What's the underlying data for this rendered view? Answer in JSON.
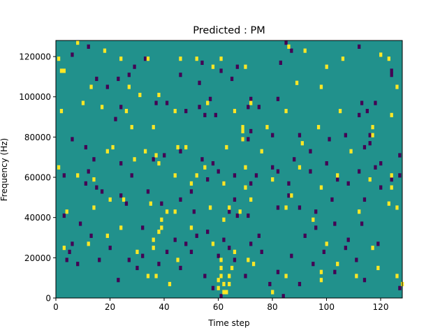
{
  "chart_data": {
    "type": "heatmap",
    "title": "Predicted : PM",
    "xlabel": "Time step",
    "ylabel": "Frequency (Hz)",
    "xlim": [
      0,
      128
    ],
    "ylim": [
      0,
      128000
    ],
    "x_ticks": [
      0,
      20,
      40,
      60,
      80,
      100,
      120
    ],
    "x_tick_labels": [
      "0",
      "20",
      "40",
      "60",
      "80",
      "100",
      "120"
    ],
    "y_ticks": [
      0,
      20000,
      40000,
      60000,
      80000,
      100000,
      120000
    ],
    "y_tick_labels": [
      "0",
      "20000",
      "40000",
      "60000",
      "80000",
      "100000",
      "120000"
    ],
    "grid": false,
    "legend": "none",
    "colors": {
      "background": "#21918c",
      "high": "#fde725",
      "low": "#440154"
    },
    "high_cells": [
      [
        1,
        118000
      ],
      [
        2,
        112000
      ],
      [
        3,
        112000
      ],
      [
        8,
        126000
      ],
      [
        18,
        122000
      ],
      [
        24,
        118000
      ],
      [
        34,
        118000
      ],
      [
        46,
        118000
      ],
      [
        52,
        118000
      ],
      [
        58,
        114000
      ],
      [
        61,
        118000
      ],
      [
        70,
        114000
      ],
      [
        86,
        124000
      ],
      [
        92,
        122000
      ],
      [
        100,
        114000
      ],
      [
        106,
        118000
      ],
      [
        120,
        120000
      ],
      [
        123,
        118000
      ],
      [
        13,
        104000
      ],
      [
        27,
        104000
      ],
      [
        31,
        100000
      ],
      [
        38,
        100000
      ],
      [
        89,
        106000
      ],
      [
        98,
        104000
      ],
      [
        126,
        104000
      ],
      [
        2,
        92000
      ],
      [
        10,
        96000
      ],
      [
        17,
        94000
      ],
      [
        26,
        92000
      ],
      [
        28,
        84000
      ],
      [
        36,
        84000
      ],
      [
        44,
        92000
      ],
      [
        56,
        96000
      ],
      [
        66,
        92000
      ],
      [
        72,
        96000
      ],
      [
        78,
        84000
      ],
      [
        85,
        92000
      ],
      [
        97,
        84000
      ],
      [
        105,
        92000
      ],
      [
        117,
        84000
      ],
      [
        124,
        90000
      ],
      [
        19,
        72000
      ],
      [
        21,
        74000
      ],
      [
        33,
        72000
      ],
      [
        37,
        70000
      ],
      [
        45,
        74000
      ],
      [
        48,
        74000
      ],
      [
        63,
        74000
      ],
      [
        69,
        78000
      ],
      [
        69,
        82000
      ],
      [
        69,
        84000
      ],
      [
        76,
        72000
      ],
      [
        91,
        76000
      ],
      [
        109,
        72000
      ],
      [
        117,
        80000
      ],
      [
        1,
        64000
      ],
      [
        8,
        60000
      ],
      [
        14,
        58000
      ],
      [
        29,
        68000
      ],
      [
        38,
        66000
      ],
      [
        44,
        60000
      ],
      [
        50,
        56000
      ],
      [
        52,
        60000
      ],
      [
        55,
        64000
      ],
      [
        62,
        56000
      ],
      [
        70,
        54000
      ],
      [
        70,
        64000
      ],
      [
        80,
        58000
      ],
      [
        87,
        50000
      ],
      [
        90,
        64000
      ],
      [
        98,
        54000
      ],
      [
        104,
        60000
      ],
      [
        116,
        58000
      ],
      [
        124,
        60000
      ],
      [
        124,
        54000
      ],
      [
        4,
        42000
      ],
      [
        14,
        44000
      ],
      [
        20,
        48000
      ],
      [
        25,
        48000
      ],
      [
        35,
        46000
      ],
      [
        44,
        42000
      ],
      [
        57,
        44000
      ],
      [
        64,
        44000
      ],
      [
        68,
        42000
      ],
      [
        72,
        48000
      ],
      [
        85,
        44000
      ],
      [
        95,
        38000
      ],
      [
        112,
        42000
      ],
      [
        123,
        46000
      ],
      [
        126,
        44000
      ],
      [
        3,
        24000
      ],
      [
        12,
        26000
      ],
      [
        19,
        30000
      ],
      [
        24,
        34000
      ],
      [
        30,
        22000
      ],
      [
        36,
        24000
      ],
      [
        36,
        28000
      ],
      [
        38,
        32000
      ],
      [
        39,
        34000
      ],
      [
        39,
        38000
      ],
      [
        41,
        42000
      ],
      [
        45,
        18000
      ],
      [
        50,
        34000
      ],
      [
        58,
        26000
      ],
      [
        62,
        38000
      ],
      [
        60,
        8000
      ],
      [
        60,
        4000
      ],
      [
        61,
        18000
      ],
      [
        61,
        14000
      ],
      [
        61,
        10000
      ],
      [
        62,
        6000
      ],
      [
        62,
        2000
      ],
      [
        63,
        2000
      ],
      [
        64,
        6000
      ],
      [
        64,
        10000
      ],
      [
        65,
        14000
      ],
      [
        66,
        22000
      ],
      [
        71,
        18000
      ],
      [
        73,
        16000
      ],
      [
        80,
        2000
      ],
      [
        85,
        10000
      ],
      [
        98,
        8000
      ],
      [
        98,
        12000
      ],
      [
        100,
        26000
      ],
      [
        104,
        16000
      ],
      [
        111,
        10000
      ],
      [
        117,
        24000
      ],
      [
        119,
        14000
      ],
      [
        126,
        10000
      ],
      [
        128,
        6000
      ],
      [
        34,
        10000
      ],
      [
        37,
        10000
      ],
      [
        42,
        6000
      ]
    ],
    "low_cells": [
      [
        6,
        120000
      ],
      [
        12,
        124000
      ],
      [
        23,
        108000
      ],
      [
        27,
        110000
      ],
      [
        29,
        114000
      ],
      [
        33,
        118000
      ],
      [
        46,
        110000
      ],
      [
        53,
        106000
      ],
      [
        54,
        116000
      ],
      [
        61,
        112000
      ],
      [
        65,
        108000
      ],
      [
        67,
        114000
      ],
      [
        72,
        98000
      ],
      [
        75,
        94000
      ],
      [
        83,
        116000
      ],
      [
        85,
        126000
      ],
      [
        87,
        122000
      ],
      [
        112,
        124000
      ],
      [
        124,
        110000
      ],
      [
        113,
        96000
      ],
      [
        115,
        92000
      ],
      [
        116,
        80000
      ],
      [
        116,
        76000
      ],
      [
        124,
        112000
      ],
      [
        15,
        108000
      ],
      [
        19,
        104000
      ],
      [
        55,
        90000
      ],
      [
        57,
        98000
      ],
      [
        71,
        94000
      ],
      [
        53,
        94000
      ],
      [
        69,
        78000
      ],
      [
        71,
        78000
      ],
      [
        72,
        82000
      ],
      [
        6,
        78000
      ],
      [
        11,
        74000
      ],
      [
        22,
        88000
      ],
      [
        24,
        94000
      ],
      [
        37,
        96000
      ],
      [
        41,
        96000
      ],
      [
        48,
        92000
      ],
      [
        59,
        90000
      ],
      [
        66,
        92000
      ],
      [
        80,
        80000
      ],
      [
        82,
        98000
      ],
      [
        94,
        72000
      ],
      [
        90,
        80000
      ],
      [
        101,
        78000
      ],
      [
        107,
        80000
      ],
      [
        118,
        96000
      ],
      [
        112,
        90000
      ],
      [
        114,
        74000
      ],
      [
        12,
        62000
      ],
      [
        14,
        68000
      ],
      [
        24,
        66000
      ],
      [
        28,
        60000
      ],
      [
        36,
        68000
      ],
      [
        40,
        70000
      ],
      [
        46,
        72000
      ],
      [
        54,
        68000
      ],
      [
        58,
        66000
      ],
      [
        60,
        62000
      ],
      [
        62,
        56000
      ],
      [
        66,
        60000
      ],
      [
        72,
        56000
      ],
      [
        74,
        60000
      ],
      [
        80,
        64000
      ],
      [
        82,
        62000
      ],
      [
        86,
        56000
      ],
      [
        88,
        68000
      ],
      [
        94,
        62000
      ],
      [
        100,
        66000
      ],
      [
        104,
        58000
      ],
      [
        112,
        62000
      ],
      [
        118,
        64000
      ],
      [
        120,
        66000
      ],
      [
        127,
        70000
      ],
      [
        3,
        60000
      ],
      [
        11,
        56000
      ],
      [
        15,
        54000
      ],
      [
        17,
        52000
      ],
      [
        24,
        50000
      ],
      [
        26,
        46000
      ],
      [
        34,
        52000
      ],
      [
        39,
        46000
      ],
      [
        46,
        48000
      ],
      [
        50,
        52000
      ],
      [
        51,
        42000
      ],
      [
        56,
        58000
      ],
      [
        64,
        42000
      ],
      [
        66,
        48000
      ],
      [
        71,
        40000
      ],
      [
        82,
        44000
      ],
      [
        86,
        50000
      ],
      [
        90,
        44000
      ],
      [
        96,
        42000
      ],
      [
        102,
        48000
      ],
      [
        108,
        56000
      ],
      [
        114,
        48000
      ],
      [
        120,
        54000
      ],
      [
        124,
        58000
      ],
      [
        127,
        60000
      ],
      [
        4,
        18000
      ],
      [
        6,
        26000
      ],
      [
        8,
        16000
      ],
      [
        13,
        30000
      ],
      [
        16,
        18000
      ],
      [
        20,
        24000
      ],
      [
        23,
        8000
      ],
      [
        27,
        18000
      ],
      [
        30,
        14000
      ],
      [
        32,
        20000
      ],
      [
        38,
        16000
      ],
      [
        41,
        22000
      ],
      [
        46,
        14000
      ],
      [
        50,
        22000
      ],
      [
        55,
        10000
      ],
      [
        58,
        4000
      ],
      [
        61,
        0
      ],
      [
        62,
        28000
      ],
      [
        66,
        18000
      ],
      [
        70,
        10000
      ],
      [
        75,
        30000
      ],
      [
        79,
        6000
      ],
      [
        82,
        12000
      ],
      [
        84,
        0
      ],
      [
        87,
        20000
      ],
      [
        90,
        6000
      ],
      [
        95,
        16000
      ],
      [
        99,
        22000
      ],
      [
        103,
        12000
      ],
      [
        107,
        24000
      ],
      [
        111,
        18000
      ],
      [
        114,
        8000
      ],
      [
        119,
        26000
      ],
      [
        127,
        4000
      ],
      [
        5,
        22000
      ],
      [
        3,
        40000
      ],
      [
        9,
        36000
      ],
      [
        32,
        34000
      ],
      [
        44,
        28000
      ],
      [
        48,
        26000
      ],
      [
        52,
        30000
      ],
      [
        56,
        32000
      ],
      [
        60,
        20000
      ],
      [
        64,
        24000
      ],
      [
        67,
        40000
      ],
      [
        72,
        26000
      ],
      [
        76,
        22000
      ],
      [
        92,
        30000
      ],
      [
        96,
        34000
      ],
      [
        103,
        36000
      ],
      [
        108,
        28000
      ],
      [
        113,
        36000
      ]
    ]
  }
}
